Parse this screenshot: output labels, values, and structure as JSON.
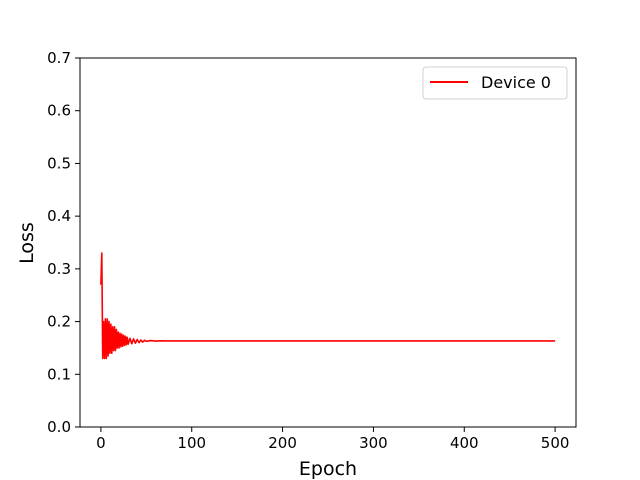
{
  "chart_data": {
    "type": "line",
    "xlabel": "Epoch",
    "ylabel": "Loss",
    "xlim": [
      -23,
      523
    ],
    "ylim": [
      0.0,
      0.7
    ],
    "x_ticks": [
      0,
      100,
      200,
      300,
      400,
      500
    ],
    "y_ticks": [
      0.0,
      0.1,
      0.2,
      0.3,
      0.4,
      0.5,
      0.6,
      0.7
    ],
    "x_tick_labels": [
      "0",
      "100",
      "200",
      "300",
      "400",
      "500"
    ],
    "y_tick_labels": [
      "0.0",
      "0.1",
      "0.2",
      "0.3",
      "0.4",
      "0.5",
      "0.6",
      "0.7"
    ],
    "grid": false,
    "legend_position": "top-right",
    "series": [
      {
        "name": "Device 0",
        "color": "#ff0000",
        "x": [
          0,
          1,
          2,
          3,
          4,
          5,
          6,
          7,
          8,
          9,
          10,
          11,
          12,
          13,
          14,
          15,
          16,
          17,
          18,
          19,
          20,
          21,
          22,
          23,
          24,
          25,
          26,
          27,
          28,
          29,
          30,
          32,
          34,
          36,
          38,
          40,
          42,
          44,
          46,
          48,
          50,
          55,
          60,
          65,
          70,
          80,
          90,
          100,
          150,
          200,
          300,
          400,
          500
        ],
        "y": [
          0.27,
          0.33,
          0.13,
          0.2,
          0.13,
          0.205,
          0.13,
          0.205,
          0.135,
          0.2,
          0.14,
          0.195,
          0.14,
          0.19,
          0.145,
          0.19,
          0.145,
          0.185,
          0.15,
          0.18,
          0.15,
          0.178,
          0.152,
          0.176,
          0.153,
          0.174,
          0.155,
          0.172,
          0.156,
          0.17,
          0.157,
          0.168,
          0.158,
          0.167,
          0.159,
          0.166,
          0.16,
          0.165,
          0.161,
          0.1645,
          0.1625,
          0.164,
          0.163,
          0.1635,
          0.1632,
          0.1633,
          0.1632,
          0.1632,
          0.1632,
          0.1632,
          0.1632,
          0.1632,
          0.1632
        ]
      }
    ]
  }
}
